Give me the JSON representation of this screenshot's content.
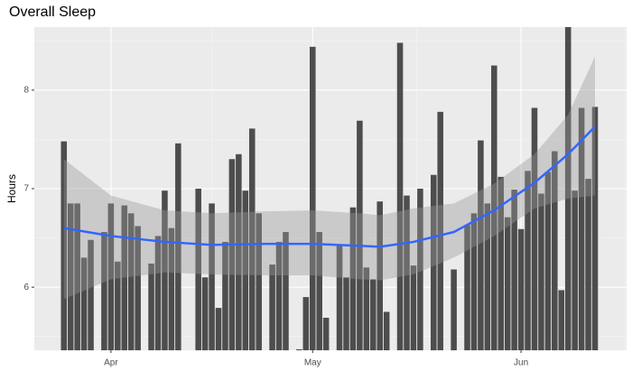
{
  "chart_data": {
    "type": "bar",
    "title": "Overall Sleep",
    "y_label": "Hours",
    "values": [
      7.48,
      6.85,
      6.85,
      6.3,
      6.48,
      null,
      6.56,
      6.85,
      6.26,
      6.83,
      6.75,
      6.62,
      null,
      6.24,
      6.52,
      6.98,
      6.6,
      7.46,
      null,
      null,
      7.0,
      6.1,
      6.85,
      5.79,
      6.46,
      7.3,
      7.35,
      6.98,
      7.61,
      6.75,
      null,
      6.23,
      6.46,
      6.56,
      null,
      5.37,
      5.9,
      8.44,
      6.56,
      5.69,
      null,
      6.42,
      6.1,
      6.81,
      7.69,
      6.2,
      6.08,
      6.87,
      5.75,
      null,
      8.48,
      6.93,
      6.22,
      7.0,
      null,
      7.14,
      7.78,
      null,
      6.18,
      null,
      6.63,
      6.75,
      7.49,
      6.85,
      8.25,
      7.12,
      6.71,
      6.99,
      6.59,
      7.18,
      7.82,
      6.95,
      7.17,
      7.38,
      5.97,
      8.64,
      6.98,
      7.82,
      7.1,
      7.83
    ],
    "color": "#4d4d4d",
    "smooth": {
      "color": "#3366ff",
      "band_color": "#999999",
      "x": [
        0,
        7,
        15,
        22,
        30,
        37,
        44,
        47,
        52,
        58,
        64,
        70,
        75,
        79
      ],
      "values": [
        6.6,
        6.52,
        6.46,
        6.43,
        6.44,
        6.44,
        6.42,
        6.41,
        6.46,
        6.56,
        6.78,
        7.06,
        7.35,
        7.63
      ],
      "lower": [
        5.88,
        6.08,
        6.15,
        6.13,
        6.12,
        6.12,
        6.08,
        6.07,
        6.13,
        6.3,
        6.52,
        6.8,
        6.9,
        6.93
      ],
      "upper": [
        7.3,
        6.93,
        6.78,
        6.75,
        6.77,
        6.78,
        6.75,
        6.73,
        6.8,
        6.85,
        7.05,
        7.35,
        7.75,
        8.34
      ]
    },
    "xlim": [
      -4.4,
      83.7
    ],
    "xticks": [
      {
        "value": 7,
        "label": "Apr"
      },
      {
        "value": 37,
        "label": "May"
      },
      {
        "value": 68,
        "label": "Jun"
      }
    ],
    "minor_xticks": [
      22,
      52.5,
      83.5
    ],
    "ylim": [
      5.36,
      8.64
    ],
    "yticks": [
      6,
      7,
      8
    ],
    "minor_yticks": [
      5.5,
      6.5,
      7.5,
      8.5
    ],
    "grid": true
  }
}
